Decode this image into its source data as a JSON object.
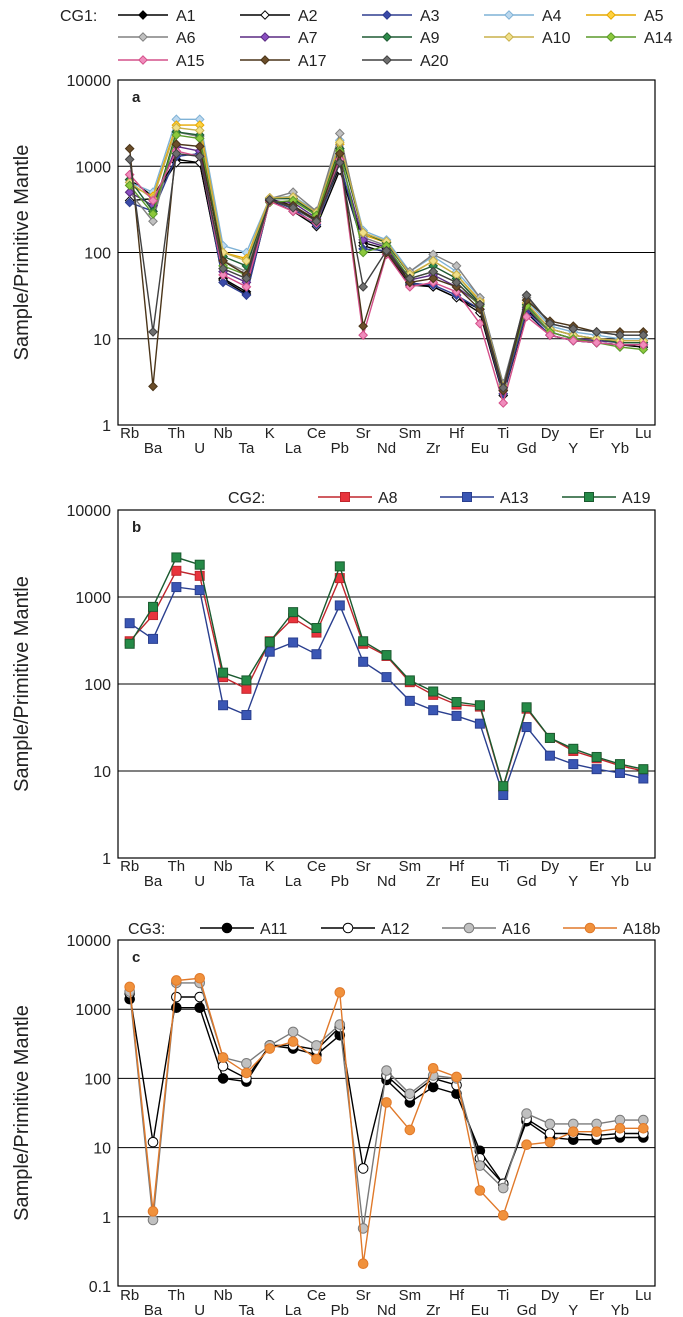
{
  "figure": {
    "ylabel": "Sample/Primitive Mantle",
    "elements": [
      "Rb",
      "Ba",
      "Th",
      "U",
      "Nb",
      "Ta",
      "K",
      "La",
      "Ce",
      "Pb",
      "Sr",
      "Nd",
      "Sm",
      "Zr",
      "Hf",
      "Eu",
      "Ti",
      "Gd",
      "Dy",
      "Y",
      "Er",
      "Yb",
      "Lu"
    ]
  },
  "chart_data": [
    {
      "type": "line",
      "panel_label": "a",
      "group_label": "CG1:",
      "ylabel": "Sample/Primitive Mantle",
      "yscale": "log",
      "ylim": [
        1,
        10000
      ],
      "yticks": [
        "1",
        "10",
        "100",
        "1000",
        "10000"
      ],
      "categories": [
        "Rb",
        "Ba",
        "Th",
        "U",
        "Nb",
        "Ta",
        "K",
        "La",
        "Ce",
        "Pb",
        "Sr",
        "Nd",
        "Sm",
        "Zr",
        "Hf",
        "Eu",
        "Ti",
        "Gd",
        "Dy",
        "Y",
        "Er",
        "Yb",
        "Lu"
      ],
      "series": [
        {
          "name": "A1",
          "color": "#000000",
          "fill": "#000000",
          "marker": "diamond",
          "values": [
            700,
            450,
            1200,
            1100,
            50,
            35,
            420,
            350,
            230,
            1000,
            130,
            110,
            45,
            40,
            30,
            22,
            2.5,
            22,
            12,
            10,
            9,
            8.5,
            8.5
          ]
        },
        {
          "name": "A2",
          "color": "#000000",
          "fill": "#ffffff",
          "marker": "diamond",
          "values": [
            400,
            420,
            1100,
            1100,
            48,
            33,
            400,
            300,
            200,
            900,
            120,
            100,
            42,
            40,
            30,
            20,
            2.2,
            20,
            11,
            9.5,
            9,
            8.5,
            8
          ]
        },
        {
          "name": "A3",
          "color": "#2e3d8f",
          "fill": "#3a4aa8",
          "marker": "diamond",
          "values": [
            380,
            300,
            1300,
            1400,
            45,
            32,
            410,
            320,
            210,
            1100,
            110,
            105,
            44,
            42,
            32,
            22,
            2.3,
            21,
            11,
            9.5,
            9,
            8.5,
            8.5
          ]
        },
        {
          "name": "A4",
          "color": "#7fb2d6",
          "fill": "#bcd8ee",
          "marker": "diamond",
          "values": [
            650,
            500,
            3500,
            3500,
            120,
            100,
            430,
            450,
            300,
            2000,
            180,
            140,
            60,
            90,
            60,
            30,
            3,
            28,
            14,
            12,
            11,
            10,
            10
          ]
        },
        {
          "name": "A5",
          "color": "#e6a800",
          "fill": "#ffd23f",
          "marker": "diamond",
          "values": [
            600,
            450,
            3000,
            3000,
            100,
            85,
            430,
            420,
            280,
            1800,
            160,
            130,
            55,
            80,
            55,
            28,
            2.8,
            26,
            13,
            11,
            10,
            9.5,
            9.5
          ]
        },
        {
          "name": "A6",
          "color": "#808080",
          "fill": "#c0c0c0",
          "marker": "diamond",
          "values": [
            500,
            230,
            2500,
            2200,
            80,
            60,
            420,
            500,
            300,
            2400,
            150,
            120,
            60,
            95,
            70,
            30,
            3,
            30,
            15,
            13,
            12,
            11,
            11
          ]
        },
        {
          "name": "A7",
          "color": "#5a2a82",
          "fill": "#8a4fc0",
          "marker": "diamond",
          "values": [
            500,
            350,
            1700,
            1500,
            60,
            45,
            400,
            380,
            250,
            1300,
            140,
            115,
            48,
            55,
            40,
            25,
            2.5,
            23,
            12,
            10,
            9.5,
            9,
            9
          ]
        },
        {
          "name": "A9",
          "color": "#1f5a33",
          "fill": "#2e8b4a",
          "marker": "diamond",
          "values": [
            700,
            300,
            2500,
            2300,
            90,
            70,
            420,
            420,
            280,
            1600,
            170,
            130,
            55,
            70,
            50,
            26,
            2.8,
            25,
            13,
            11,
            10,
            9,
            9
          ]
        },
        {
          "name": "A10",
          "color": "#c8b04a",
          "fill": "#f0e08a",
          "marker": "diamond",
          "values": [
            650,
            420,
            2800,
            2600,
            100,
            80,
            430,
            440,
            290,
            1900,
            170,
            135,
            56,
            80,
            55,
            27,
            2.8,
            26,
            13,
            11,
            10,
            9.5,
            9.5
          ]
        },
        {
          "name": "A14",
          "color": "#5a9a2a",
          "fill": "#8cc83c",
          "marker": "diamond",
          "values": [
            600,
            280,
            2300,
            2100,
            70,
            55,
            380,
            400,
            270,
            1500,
            100,
            120,
            50,
            60,
            45,
            24,
            2.6,
            24,
            12,
            10,
            9,
            8,
            7.5
          ]
        },
        {
          "name": "A15",
          "color": "#d4508a",
          "fill": "#f08cbc",
          "marker": "diamond",
          "values": [
            800,
            400,
            1500,
            1300,
            55,
            40,
            390,
            300,
            220,
            1200,
            11,
            95,
            40,
            45,
            35,
            15,
            1.8,
            18,
            11,
            9.5,
            9,
            8.5,
            8.5
          ]
        },
        {
          "name": "A17",
          "color": "#4a3418",
          "fill": "#6b4e2a",
          "marker": "diamond",
          "values": [
            1600,
            2.8,
            1800,
            1700,
            80,
            55,
            400,
            350,
            240,
            1400,
            14,
            100,
            45,
            50,
            40,
            22,
            2.5,
            28,
            16,
            14,
            12,
            12,
            12
          ]
        },
        {
          "name": "A20",
          "color": "#404040",
          "fill": "#6e6e6e",
          "marker": "diamond",
          "values": [
            1200,
            12,
            1400,
            1300,
            65,
            50,
            410,
            330,
            230,
            1100,
            40,
            105,
            50,
            60,
            45,
            25,
            2.7,
            32,
            15,
            13,
            12,
            11,
            11
          ]
        }
      ]
    },
    {
      "type": "line",
      "panel_label": "b",
      "group_label": "CG2:",
      "ylabel": "Sample/Primitive Mantle",
      "yscale": "log",
      "ylim": [
        1,
        10000
      ],
      "yticks": [
        "1",
        "10",
        "100",
        "1000",
        "10000"
      ],
      "categories": [
        "Rb",
        "Ba",
        "Th",
        "U",
        "Nb",
        "Ta",
        "K",
        "La",
        "Ce",
        "Pb",
        "Sr",
        "Nd",
        "Sm",
        "Zr",
        "Hf",
        "Eu",
        "Ti",
        "Gd",
        "Dy",
        "Y",
        "Er",
        "Yb",
        "Lu"
      ],
      "series": [
        {
          "name": "A8",
          "color": "#c0262d",
          "fill": "#e8343c",
          "marker": "square",
          "values": [
            310,
            620,
            2000,
            1750,
            120,
            88,
            310,
            570,
            390,
            1650,
            290,
            210,
            105,
            75,
            58,
            55,
            6.5,
            52,
            24,
            17,
            14,
            11.5,
            10
          ]
        },
        {
          "name": "A13",
          "color": "#2a3f8f",
          "fill": "#3a56b4",
          "marker": "square",
          "values": [
            500,
            330,
            1300,
            1200,
            57,
            44,
            235,
            300,
            220,
            800,
            180,
            120,
            64,
            50,
            43,
            35,
            5.3,
            32,
            15,
            12,
            10.5,
            9.5,
            8.2
          ]
        },
        {
          "name": "A19",
          "color": "#1a5a2f",
          "fill": "#258a47",
          "marker": "square",
          "values": [
            290,
            770,
            2850,
            2350,
            135,
            110,
            305,
            670,
            440,
            2250,
            310,
            215,
            110,
            82,
            62,
            57,
            6.7,
            54,
            24,
            18,
            14.5,
            12,
            10.5
          ]
        }
      ]
    },
    {
      "type": "line",
      "panel_label": "c",
      "group_label": "CG3:",
      "ylabel": "Sample/Primitive Mantle",
      "yscale": "log",
      "ylim": [
        0.1,
        10000
      ],
      "yticks": [
        "0.1",
        "1",
        "10",
        "100",
        "1000",
        "10000"
      ],
      "categories": [
        "Rb",
        "Ba",
        "Th",
        "U",
        "Nb",
        "Ta",
        "K",
        "La",
        "Ce",
        "Pb",
        "Sr",
        "Nd",
        "Sm",
        "Zr",
        "Hf",
        "Eu",
        "Ti",
        "Gd",
        "Dy",
        "Y",
        "Er",
        "Yb",
        "Lu"
      ],
      "series": [
        {
          "name": "A11",
          "color": "#000000",
          "fill": "#000000",
          "marker": "circle",
          "values": [
            1400,
            null,
            1050,
            1050,
            100,
            90,
            300,
            270,
            220,
            420,
            null,
            95,
            45,
            75,
            60,
            9,
            3,
            24,
            14,
            13,
            13,
            14,
            14
          ]
        },
        {
          "name": "A12",
          "color": "#000000",
          "fill": "#ffffff",
          "marker": "circle",
          "values": [
            1700,
            12,
            1500,
            1500,
            150,
            100,
            300,
            300,
            260,
            550,
            5,
            110,
            55,
            100,
            80,
            7,
            3,
            26,
            16,
            16,
            15,
            16,
            16
          ]
        },
        {
          "name": "A16",
          "color": "#7a7a7a",
          "fill": "#c0c0c0",
          "marker": "circle",
          "values": [
            1800,
            0.9,
            2400,
            2400,
            200,
            165,
            300,
            470,
            300,
            600,
            0.68,
            130,
            60,
            110,
            100,
            5.5,
            2.6,
            31,
            22,
            22,
            22,
            25,
            25
          ]
        },
        {
          "name": "A18b",
          "color": "#e0792a",
          "fill": "#f0913c",
          "marker": "circle",
          "values": [
            2100,
            1.2,
            2600,
            2800,
            200,
            120,
            270,
            340,
            190,
            1750,
            0.21,
            45,
            18,
            140,
            105,
            2.4,
            1.05,
            11,
            12,
            17,
            17,
            19,
            19
          ]
        }
      ]
    }
  ]
}
